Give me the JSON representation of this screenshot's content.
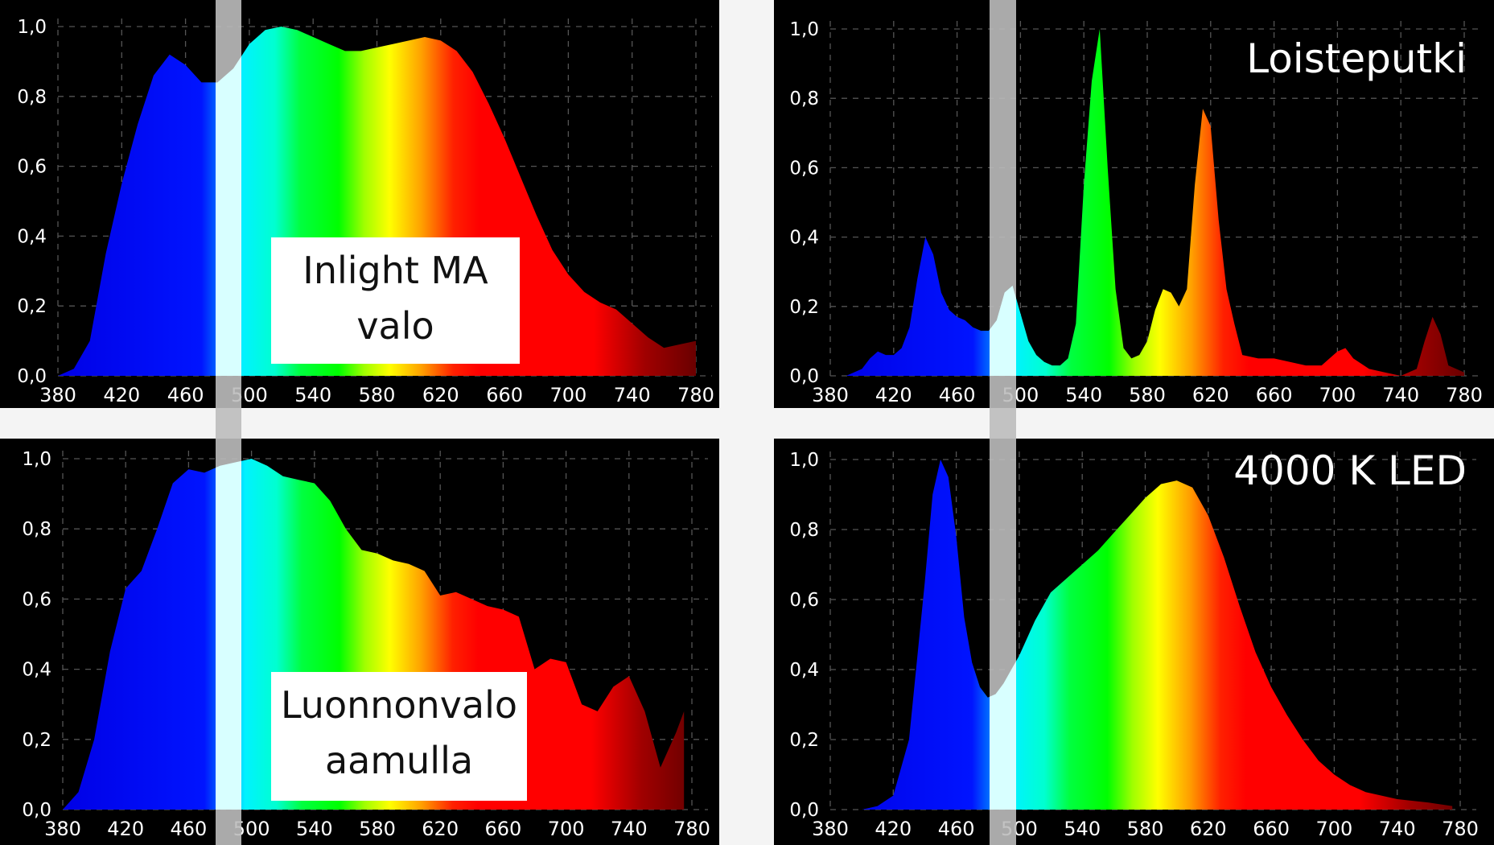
{
  "chart_data": [
    {
      "type": "area",
      "title": "",
      "label": [
        "Inlight MA",
        "valo"
      ],
      "xlabel": "",
      "ylabel": "",
      "xlim": [
        380,
        780
      ],
      "ylim": [
        0,
        1.0
      ],
      "xticks": [
        "380",
        "420",
        "460",
        "500",
        "540",
        "580",
        "620",
        "660",
        "700",
        "740",
        "780"
      ],
      "yticks": [
        "0,0",
        "0,2",
        "0,4",
        "0,6",
        "0,8",
        "1,0"
      ],
      "grid": true,
      "x": [
        380,
        390,
        400,
        410,
        420,
        430,
        440,
        450,
        460,
        470,
        480,
        490,
        500,
        510,
        520,
        530,
        540,
        550,
        560,
        570,
        580,
        590,
        600,
        610,
        620,
        630,
        640,
        650,
        660,
        670,
        680,
        690,
        700,
        710,
        720,
        730,
        740,
        750,
        760,
        770,
        780
      ],
      "y": [
        0.0,
        0.02,
        0.1,
        0.35,
        0.55,
        0.72,
        0.86,
        0.92,
        0.89,
        0.84,
        0.84,
        0.88,
        0.95,
        0.99,
        1.0,
        0.99,
        0.97,
        0.95,
        0.93,
        0.93,
        0.94,
        0.95,
        0.96,
        0.97,
        0.96,
        0.93,
        0.87,
        0.78,
        0.68,
        0.57,
        0.46,
        0.36,
        0.29,
        0.24,
        0.21,
        0.19,
        0.15,
        0.11,
        0.08,
        0.09,
        0.1
      ]
    },
    {
      "type": "area",
      "title": "",
      "label": [
        "Loisteputki"
      ],
      "xlabel": "",
      "ylabel": "",
      "xlim": [
        380,
        780
      ],
      "ylim": [
        0,
        1.0
      ],
      "xticks": [
        "380",
        "420",
        "460",
        "500",
        "540",
        "580",
        "620",
        "660",
        "700",
        "740",
        "780"
      ],
      "yticks": [
        "0,0",
        "0,2",
        "0,4",
        "0,6",
        "0,8",
        "1,0"
      ],
      "grid": true,
      "x": [
        380,
        390,
        400,
        405,
        410,
        415,
        420,
        425,
        430,
        435,
        440,
        445,
        450,
        455,
        460,
        465,
        470,
        475,
        480,
        485,
        490,
        495,
        500,
        505,
        510,
        515,
        520,
        525,
        530,
        535,
        540,
        545,
        550,
        555,
        560,
        565,
        570,
        575,
        580,
        585,
        590,
        595,
        600,
        605,
        610,
        615,
        620,
        625,
        630,
        635,
        640,
        650,
        660,
        670,
        680,
        690,
        700,
        705,
        710,
        720,
        730,
        740,
        750,
        755,
        760,
        765,
        770,
        780
      ],
      "y": [
        0.0,
        0.0,
        0.02,
        0.05,
        0.07,
        0.06,
        0.06,
        0.08,
        0.14,
        0.28,
        0.4,
        0.35,
        0.24,
        0.19,
        0.17,
        0.16,
        0.14,
        0.13,
        0.13,
        0.16,
        0.24,
        0.26,
        0.18,
        0.1,
        0.06,
        0.04,
        0.03,
        0.03,
        0.05,
        0.15,
        0.55,
        0.85,
        1.0,
        0.6,
        0.25,
        0.08,
        0.05,
        0.06,
        0.1,
        0.19,
        0.25,
        0.24,
        0.2,
        0.25,
        0.55,
        0.77,
        0.72,
        0.45,
        0.25,
        0.15,
        0.06,
        0.05,
        0.05,
        0.04,
        0.03,
        0.03,
        0.07,
        0.08,
        0.05,
        0.02,
        0.01,
        0.0,
        0.02,
        0.1,
        0.17,
        0.12,
        0.03,
        0.01
      ]
    },
    {
      "type": "area",
      "title": "",
      "label": [
        "Luonnonvalo",
        "aamulla"
      ],
      "xlabel": "",
      "ylabel": "",
      "xlim": [
        380,
        780
      ],
      "ylim": [
        0,
        1.0
      ],
      "xticks": [
        "380",
        "420",
        "460",
        "500",
        "540",
        "580",
        "620",
        "660",
        "700",
        "740",
        "780"
      ],
      "yticks": [
        "0,0",
        "0,2",
        "0,4",
        "0,6",
        "0,8",
        "1,0"
      ],
      "grid": true,
      "x": [
        380,
        390,
        400,
        410,
        420,
        430,
        440,
        450,
        460,
        470,
        480,
        490,
        500,
        510,
        520,
        530,
        540,
        550,
        560,
        570,
        580,
        590,
        600,
        610,
        620,
        630,
        640,
        650,
        660,
        670,
        680,
        690,
        700,
        710,
        720,
        730,
        740,
        750,
        760,
        770,
        775
      ],
      "y": [
        0.0,
        0.05,
        0.2,
        0.45,
        0.63,
        0.68,
        0.8,
        0.93,
        0.97,
        0.96,
        0.98,
        0.99,
        1.0,
        0.98,
        0.95,
        0.94,
        0.93,
        0.88,
        0.8,
        0.74,
        0.73,
        0.71,
        0.7,
        0.68,
        0.61,
        0.62,
        0.6,
        0.58,
        0.57,
        0.55,
        0.4,
        0.43,
        0.42,
        0.3,
        0.28,
        0.35,
        0.38,
        0.28,
        0.12,
        0.22,
        0.28
      ]
    },
    {
      "type": "area",
      "title": "",
      "label": [
        "4000 K LED"
      ],
      "xlabel": "",
      "ylabel": "",
      "xlim": [
        380,
        780
      ],
      "ylim": [
        0,
        1.0
      ],
      "xticks": [
        "380",
        "420",
        "460",
        "500",
        "540",
        "580",
        "620",
        "660",
        "700",
        "740",
        "780"
      ],
      "yticks": [
        "0,0",
        "0,2",
        "0,4",
        "0,6",
        "0,8",
        "1,0"
      ],
      "grid": true,
      "x": [
        380,
        400,
        410,
        420,
        430,
        440,
        445,
        450,
        455,
        460,
        465,
        470,
        475,
        480,
        485,
        490,
        495,
        500,
        510,
        520,
        530,
        540,
        550,
        560,
        570,
        580,
        590,
        600,
        610,
        620,
        630,
        640,
        650,
        660,
        670,
        680,
        690,
        700,
        710,
        720,
        740,
        760,
        775
      ],
      "y": [
        0.0,
        0.0,
        0.01,
        0.04,
        0.2,
        0.65,
        0.9,
        1.0,
        0.95,
        0.78,
        0.55,
        0.42,
        0.35,
        0.32,
        0.33,
        0.36,
        0.4,
        0.44,
        0.54,
        0.62,
        0.66,
        0.7,
        0.74,
        0.79,
        0.84,
        0.89,
        0.93,
        0.94,
        0.92,
        0.84,
        0.72,
        0.58,
        0.45,
        0.35,
        0.27,
        0.2,
        0.14,
        0.1,
        0.07,
        0.05,
        0.03,
        0.02,
        0.01
      ]
    }
  ]
}
